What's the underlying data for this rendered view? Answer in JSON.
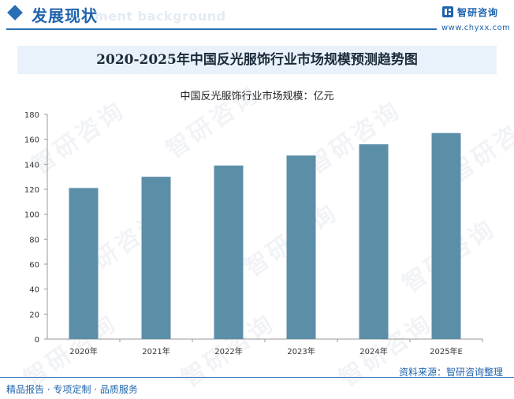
{
  "header": {
    "section_title": "发展现状",
    "bg_word": "ment background"
  },
  "logo": {
    "name": "智研咨询",
    "url": "www.chyxx.com"
  },
  "watermark_text": "智研咨询",
  "footer": {
    "source": "资料来源：智研咨询整理",
    "slogan": "精品报告 · 专项定制 · 品质服务"
  },
  "colors": {
    "bar": "#5b8fa8",
    "accent": "#2a6fb5"
  },
  "chart_data": {
    "type": "bar",
    "title": "2020-2025年中国反光服饰行业市场规模预测趋势图",
    "subtitle": "中国反光服饰行业市场规模：亿元",
    "categories": [
      "2020年",
      "2021年",
      "2022年",
      "2023年",
      "2024年",
      "2025年E"
    ],
    "values": [
      121,
      130,
      139,
      147,
      156,
      165
    ],
    "ylim": [
      0,
      180
    ],
    "yticks": [
      0,
      20,
      40,
      60,
      80,
      100,
      120,
      140,
      160,
      180
    ],
    "grid": false,
    "legend": "none"
  }
}
